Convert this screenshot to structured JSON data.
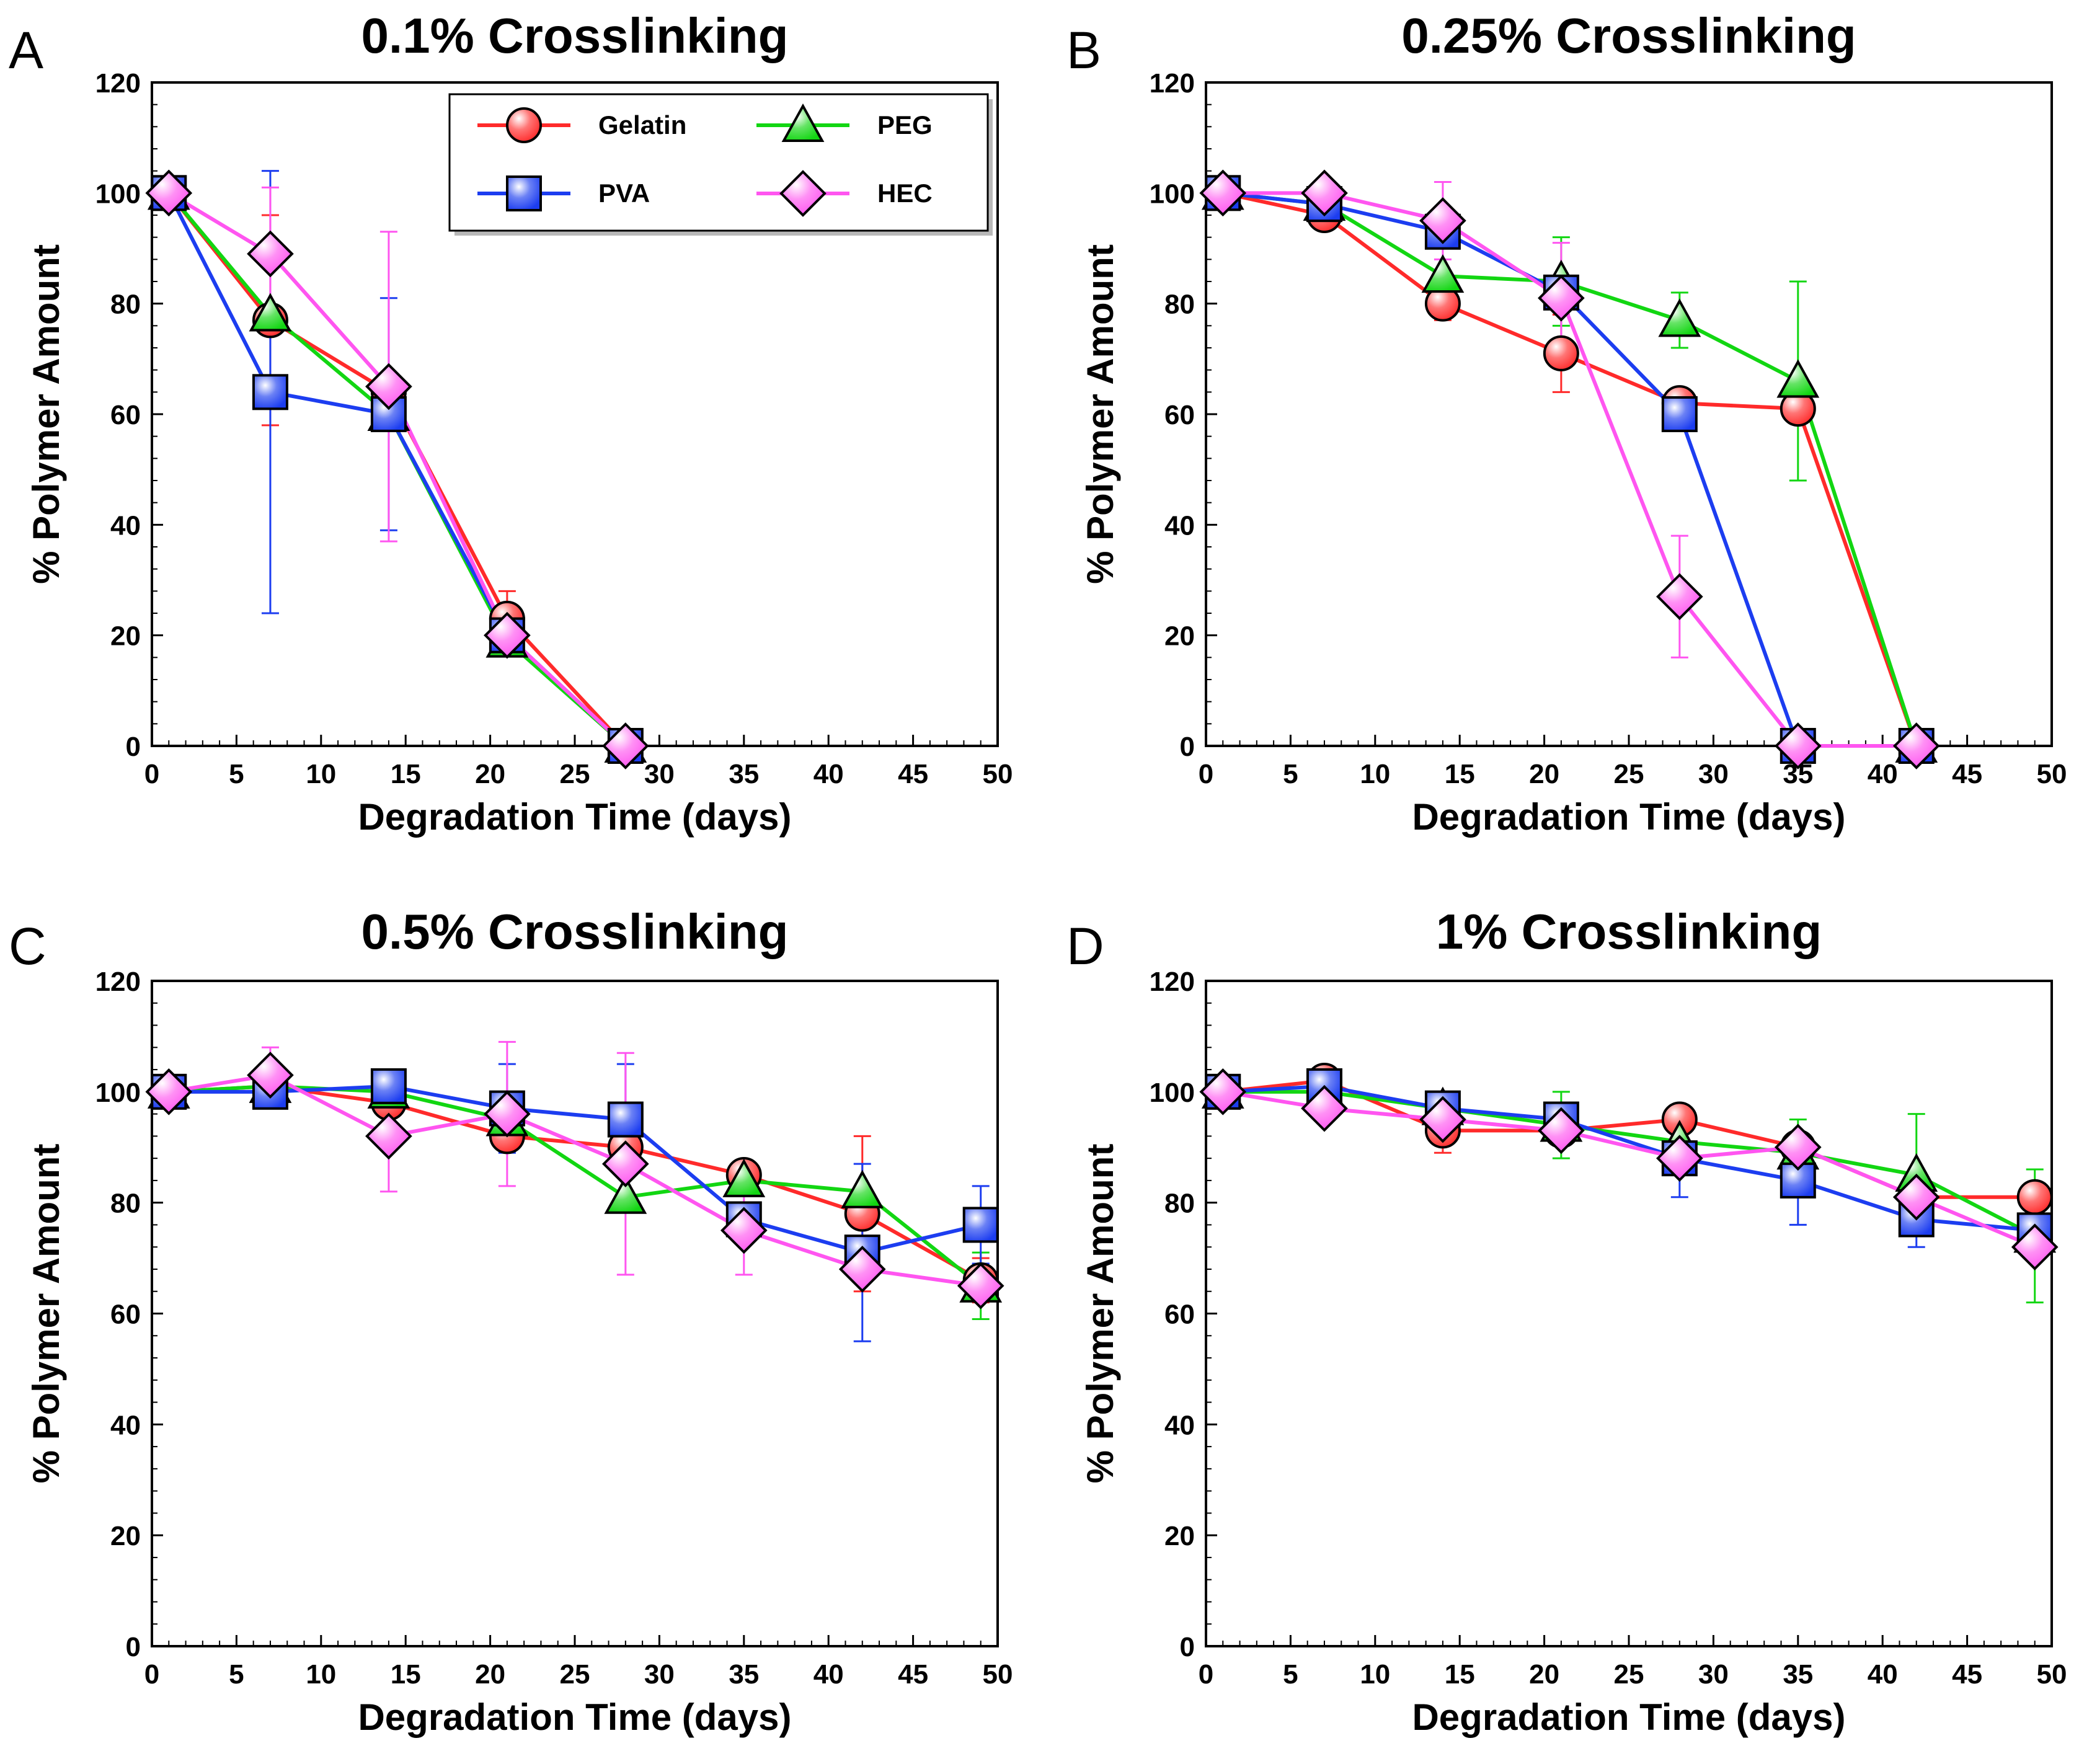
{
  "figure": {
    "colors": {
      "Gelatin": "#ff2a2a",
      "PEG": "#12d612",
      "PVA": "#1c3df0",
      "HEC": "#ff55f0"
    },
    "markers": {
      "Gelatin": "circle",
      "PEG": "triangle",
      "PVA": "square",
      "HEC": "diamond"
    },
    "legend": {
      "placement": "top-right",
      "entries": [
        "Gelatin",
        "PEG",
        "PVA",
        "HEC"
      ]
    }
  },
  "chart_data": [
    {
      "panel": "A",
      "type": "line",
      "title": "0.1% Crosslinking",
      "xlabel": "Degradation Time (days)",
      "ylabel": "% Polymer Amount",
      "xlim": [
        0,
        50
      ],
      "ylim": [
        0,
        120
      ],
      "xticks": [
        "0",
        "5",
        "10",
        "15",
        "20",
        "25",
        "30",
        "35",
        "40",
        "45",
        "50"
      ],
      "yticks": [
        "0",
        "20",
        "40",
        "60",
        "80",
        "100",
        "120"
      ],
      "grid": false,
      "show_legend": true,
      "series": [
        {
          "name": "Gelatin",
          "x": [
            1,
            7,
            14,
            21,
            28
          ],
          "y": [
            100,
            77,
            64,
            23,
            0
          ],
          "err": [
            0,
            19,
            0,
            5,
            0
          ]
        },
        {
          "name": "PEG",
          "x": [
            1,
            7,
            14,
            21,
            28
          ],
          "y": [
            100,
            78,
            60,
            19,
            0
          ],
          "err": [
            0,
            0,
            0,
            0,
            0
          ]
        },
        {
          "name": "PVA",
          "x": [
            1,
            7,
            14,
            21,
            28
          ],
          "y": [
            100,
            64,
            60,
            20,
            0
          ],
          "err": [
            0,
            40,
            21,
            0,
            0
          ]
        },
        {
          "name": "HEC",
          "x": [
            1,
            7,
            14,
            21,
            28
          ],
          "y": [
            100,
            89,
            65,
            20,
            0
          ],
          "err": [
            0,
            12,
            28,
            0,
            0
          ]
        }
      ]
    },
    {
      "panel": "B",
      "type": "line",
      "title": "0.25% Crosslinking",
      "xlabel": "Degradation Time (days)",
      "ylabel": "% Polymer Amount",
      "xlim": [
        0,
        50
      ],
      "ylim": [
        0,
        120
      ],
      "xticks": [
        "0",
        "5",
        "10",
        "15",
        "20",
        "25",
        "30",
        "35",
        "40",
        "45",
        "50"
      ],
      "yticks": [
        "0",
        "20",
        "40",
        "60",
        "80",
        "100",
        "120"
      ],
      "grid": false,
      "show_legend": false,
      "series": [
        {
          "name": "Gelatin",
          "x": [
            1,
            7,
            14,
            21,
            28,
            35,
            42
          ],
          "y": [
            100,
            96,
            80,
            71,
            62,
            61,
            0
          ],
          "err": [
            0,
            0,
            3,
            7,
            0,
            0,
            0
          ]
        },
        {
          "name": "PEG",
          "x": [
            1,
            7,
            14,
            21,
            28,
            35,
            42
          ],
          "y": [
            100,
            98,
            85,
            84,
            77,
            66,
            0
          ],
          "err": [
            0,
            0,
            0,
            8,
            5,
            18,
            0
          ]
        },
        {
          "name": "PVA",
          "x": [
            1,
            7,
            14,
            21,
            28,
            35,
            42
          ],
          "y": [
            100,
            98,
            93,
            82,
            60,
            0,
            0
          ],
          "err": [
            0,
            0,
            0,
            0,
            0,
            0,
            0
          ]
        },
        {
          "name": "HEC",
          "x": [
            1,
            7,
            14,
            21,
            28,
            35,
            42
          ],
          "y": [
            100,
            100,
            95,
            81,
            27,
            0,
            0
          ],
          "err": [
            0,
            0,
            7,
            10,
            11,
            0,
            0
          ]
        }
      ]
    },
    {
      "panel": "C",
      "type": "line",
      "title": "0.5% Crosslinking",
      "xlabel": "Degradation Time (days)",
      "ylabel": "% Polymer Amount",
      "xlim": [
        0,
        50
      ],
      "ylim": [
        0,
        120
      ],
      "xticks": [
        "0",
        "5",
        "10",
        "15",
        "20",
        "25",
        "30",
        "35",
        "40",
        "45",
        "50"
      ],
      "yticks": [
        "0",
        "20",
        "40",
        "60",
        "80",
        "100",
        "120"
      ],
      "grid": false,
      "show_legend": false,
      "series": [
        {
          "name": "Gelatin",
          "x": [
            1,
            7,
            14,
            21,
            28,
            35,
            42,
            49
          ],
          "y": [
            100,
            101,
            98,
            92,
            90,
            85,
            78,
            66
          ],
          "err": [
            0,
            0,
            0,
            0,
            0,
            0,
            14,
            4
          ]
        },
        {
          "name": "PEG",
          "x": [
            1,
            7,
            14,
            21,
            28,
            35,
            42,
            49
          ],
          "y": [
            100,
            101,
            100,
            95,
            81,
            84,
            82,
            65
          ],
          "err": [
            0,
            0,
            0,
            0,
            0,
            0,
            0,
            6
          ]
        },
        {
          "name": "PVA",
          "x": [
            1,
            7,
            14,
            21,
            28,
            35,
            42,
            49
          ],
          "y": [
            100,
            100,
            101,
            97,
            95,
            77,
            71,
            76
          ],
          "err": [
            0,
            0,
            0,
            8,
            10,
            0,
            16,
            7
          ]
        },
        {
          "name": "HEC",
          "x": [
            1,
            7,
            14,
            21,
            28,
            35,
            42,
            49
          ],
          "y": [
            100,
            103,
            92,
            96,
            87,
            75,
            68,
            65
          ],
          "err": [
            0,
            5,
            10,
            13,
            20,
            8,
            0,
            0
          ]
        }
      ]
    },
    {
      "panel": "D",
      "type": "line",
      "title": "1% Crosslinking",
      "xlabel": "Degradation Time (days)",
      "ylabel": "% Polymer Amount",
      "xlim": [
        0,
        50
      ],
      "ylim": [
        0,
        120
      ],
      "xticks": [
        "0",
        "5",
        "10",
        "15",
        "20",
        "25",
        "30",
        "35",
        "40",
        "45",
        "50"
      ],
      "yticks": [
        "0",
        "20",
        "40",
        "60",
        "80",
        "100",
        "120"
      ],
      "grid": false,
      "show_legend": false,
      "series": [
        {
          "name": "Gelatin",
          "x": [
            1,
            7,
            14,
            21,
            28,
            35,
            42,
            49
          ],
          "y": [
            100,
            102,
            93,
            93,
            95,
            90,
            81,
            81
          ],
          "err": [
            0,
            0,
            4,
            0,
            0,
            0,
            0,
            0
          ]
        },
        {
          "name": "PEG",
          "x": [
            1,
            7,
            14,
            21,
            28,
            35,
            42,
            49
          ],
          "y": [
            100,
            100,
            97,
            94,
            91,
            89,
            85,
            74
          ],
          "err": [
            0,
            0,
            0,
            6,
            0,
            6,
            11,
            12
          ]
        },
        {
          "name": "PVA",
          "x": [
            1,
            7,
            14,
            21,
            28,
            35,
            42,
            49
          ],
          "y": [
            100,
            101,
            97,
            95,
            88,
            84,
            77,
            75
          ],
          "err": [
            0,
            0,
            0,
            0,
            7,
            8,
            5,
            0
          ]
        },
        {
          "name": "HEC",
          "x": [
            1,
            7,
            14,
            21,
            28,
            35,
            42,
            49
          ],
          "y": [
            100,
            97,
            95,
            93,
            88,
            90,
            81,
            72
          ],
          "err": [
            0,
            0,
            0,
            0,
            0,
            0,
            0,
            0
          ]
        }
      ]
    }
  ]
}
